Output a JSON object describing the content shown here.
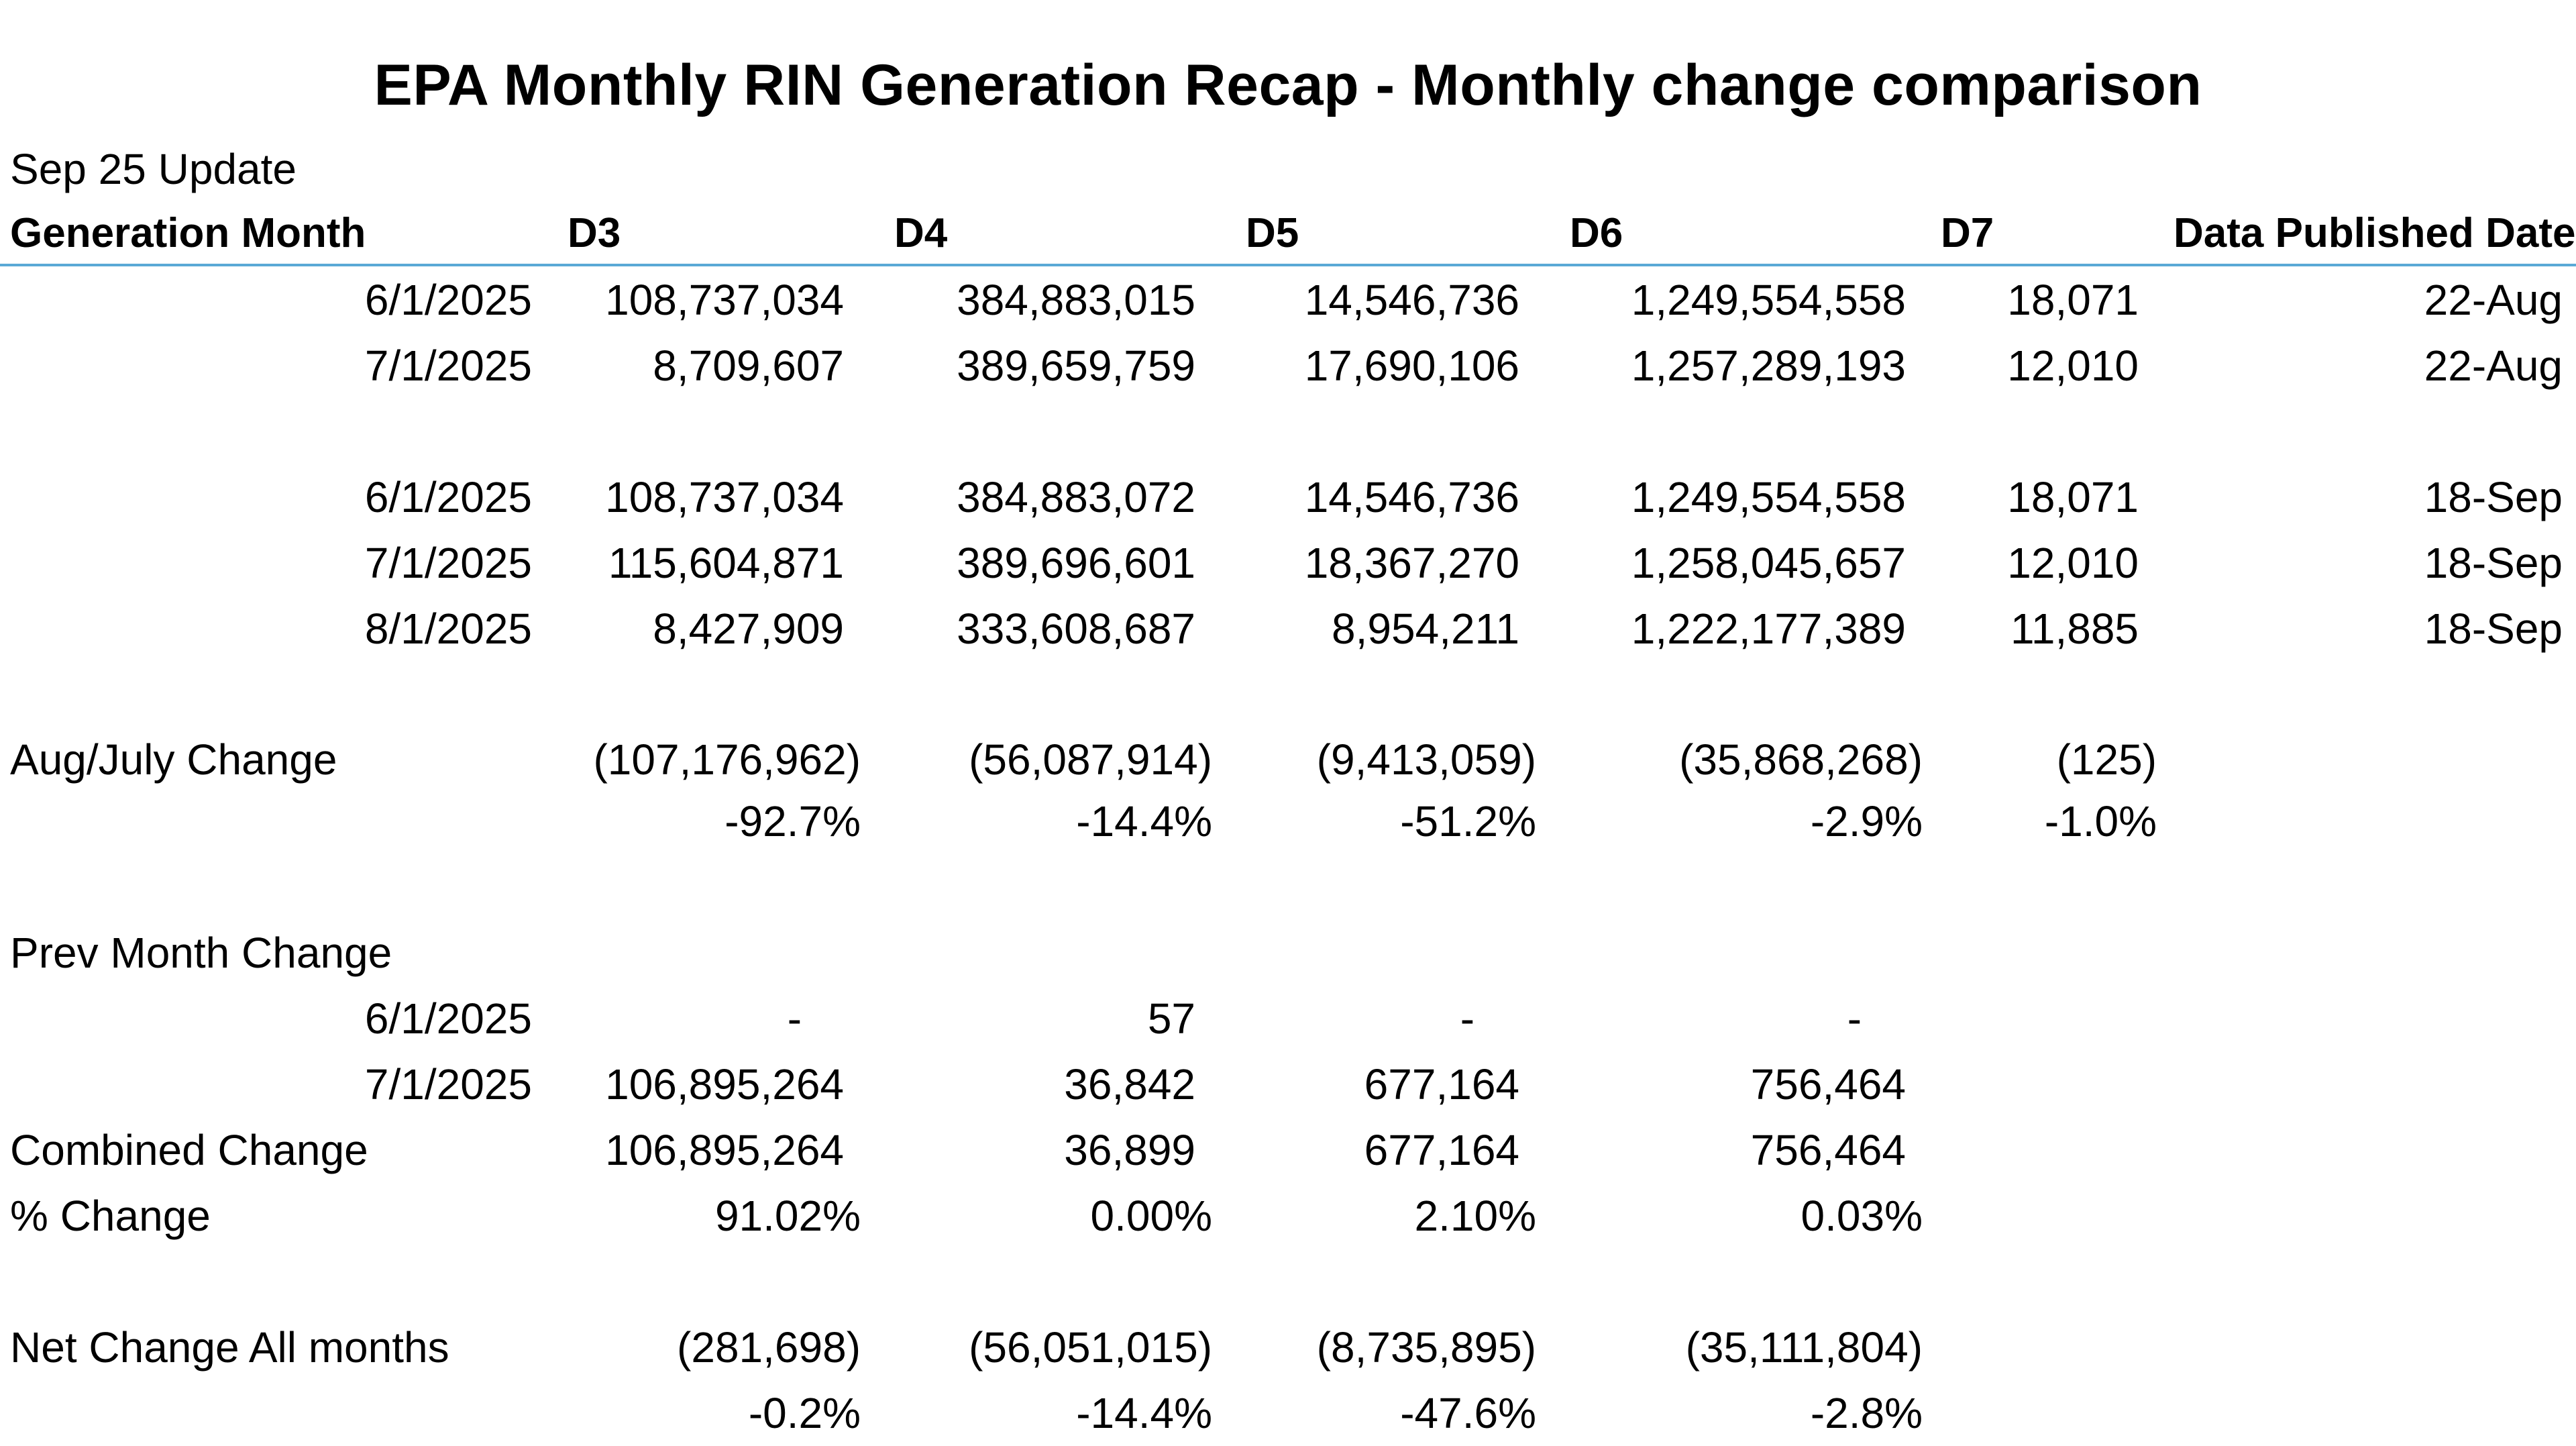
{
  "title": "EPA Monthly RIN Generation Recap - Monthly change comparison",
  "update_label": "Sep 25 Update",
  "headers": {
    "month": "Generation Month",
    "d3": "D3",
    "d4": "D4",
    "d5": "D5",
    "d6": "D6",
    "d7": "D7",
    "published": "Data Published Date"
  },
  "aug_release": [
    {
      "month": "6/1/2025",
      "d3": "108,737,034",
      "d4": "384,883,015",
      "d5": "14,546,736",
      "d6": "1,249,554,558",
      "d7": "18,071",
      "published": "22-Aug"
    },
    {
      "month": "7/1/2025",
      "d3": "8,709,607",
      "d4": "389,659,759",
      "d5": "17,690,106",
      "d6": "1,257,289,193",
      "d7": "12,010",
      "published": "22-Aug"
    }
  ],
  "sep_release": [
    {
      "month": "6/1/2025",
      "d3": "108,737,034",
      "d4": "384,883,072",
      "d5": "14,546,736",
      "d6": "1,249,554,558",
      "d7": "18,071",
      "published": "18-Sep"
    },
    {
      "month": "7/1/2025",
      "d3": "115,604,871",
      "d4": "389,696,601",
      "d5": "18,367,270",
      "d6": "1,258,045,657",
      "d7": "12,010",
      "published": "18-Sep"
    },
    {
      "month": "8/1/2025",
      "d3": "8,427,909",
      "d4": "333,608,687",
      "d5": "8,954,211",
      "d6": "1,222,177,389",
      "d7": "11,885",
      "published": "18-Sep"
    }
  ],
  "aug_july_change": {
    "label": "Aug/July Change",
    "values": {
      "d3": "(107,176,962)",
      "d4": "(56,087,914)",
      "d5": "(9,413,059)",
      "d6": "(35,868,268)",
      "d7": "(125)"
    },
    "percents": {
      "d3": "-92.7%",
      "d4": "-14.4%",
      "d5": "-51.2%",
      "d6": "-2.9%",
      "d7": "-1.0%"
    }
  },
  "prev_month_change": {
    "label": "Prev Month Change",
    "rows": [
      {
        "month": "6/1/2025",
        "d3": "-",
        "d4": "57",
        "d5": "-",
        "d6": "-"
      },
      {
        "month": "7/1/2025",
        "d3": "106,895,264",
        "d4": "36,842",
        "d5": "677,164",
        "d6": "756,464"
      }
    ]
  },
  "combined_change": {
    "label": "Combined Change",
    "d3": "106,895,264",
    "d4": "36,899",
    "d5": "677,164",
    "d6": "756,464"
  },
  "pct_change": {
    "label": "% Change",
    "d3": "91.02%",
    "d4": "0.00%",
    "d5": "2.10%",
    "d6": "0.03%"
  },
  "net_change": {
    "label": "Net Change All months",
    "values": {
      "d3": "(281,698)",
      "d4": "(56,051,015)",
      "d5": "(8,735,895)",
      "d6": "(35,111,804)"
    },
    "percents": {
      "d3": "-0.2%",
      "d4": "-14.4%",
      "d5": "-47.6%",
      "d6": "-2.8%"
    }
  }
}
